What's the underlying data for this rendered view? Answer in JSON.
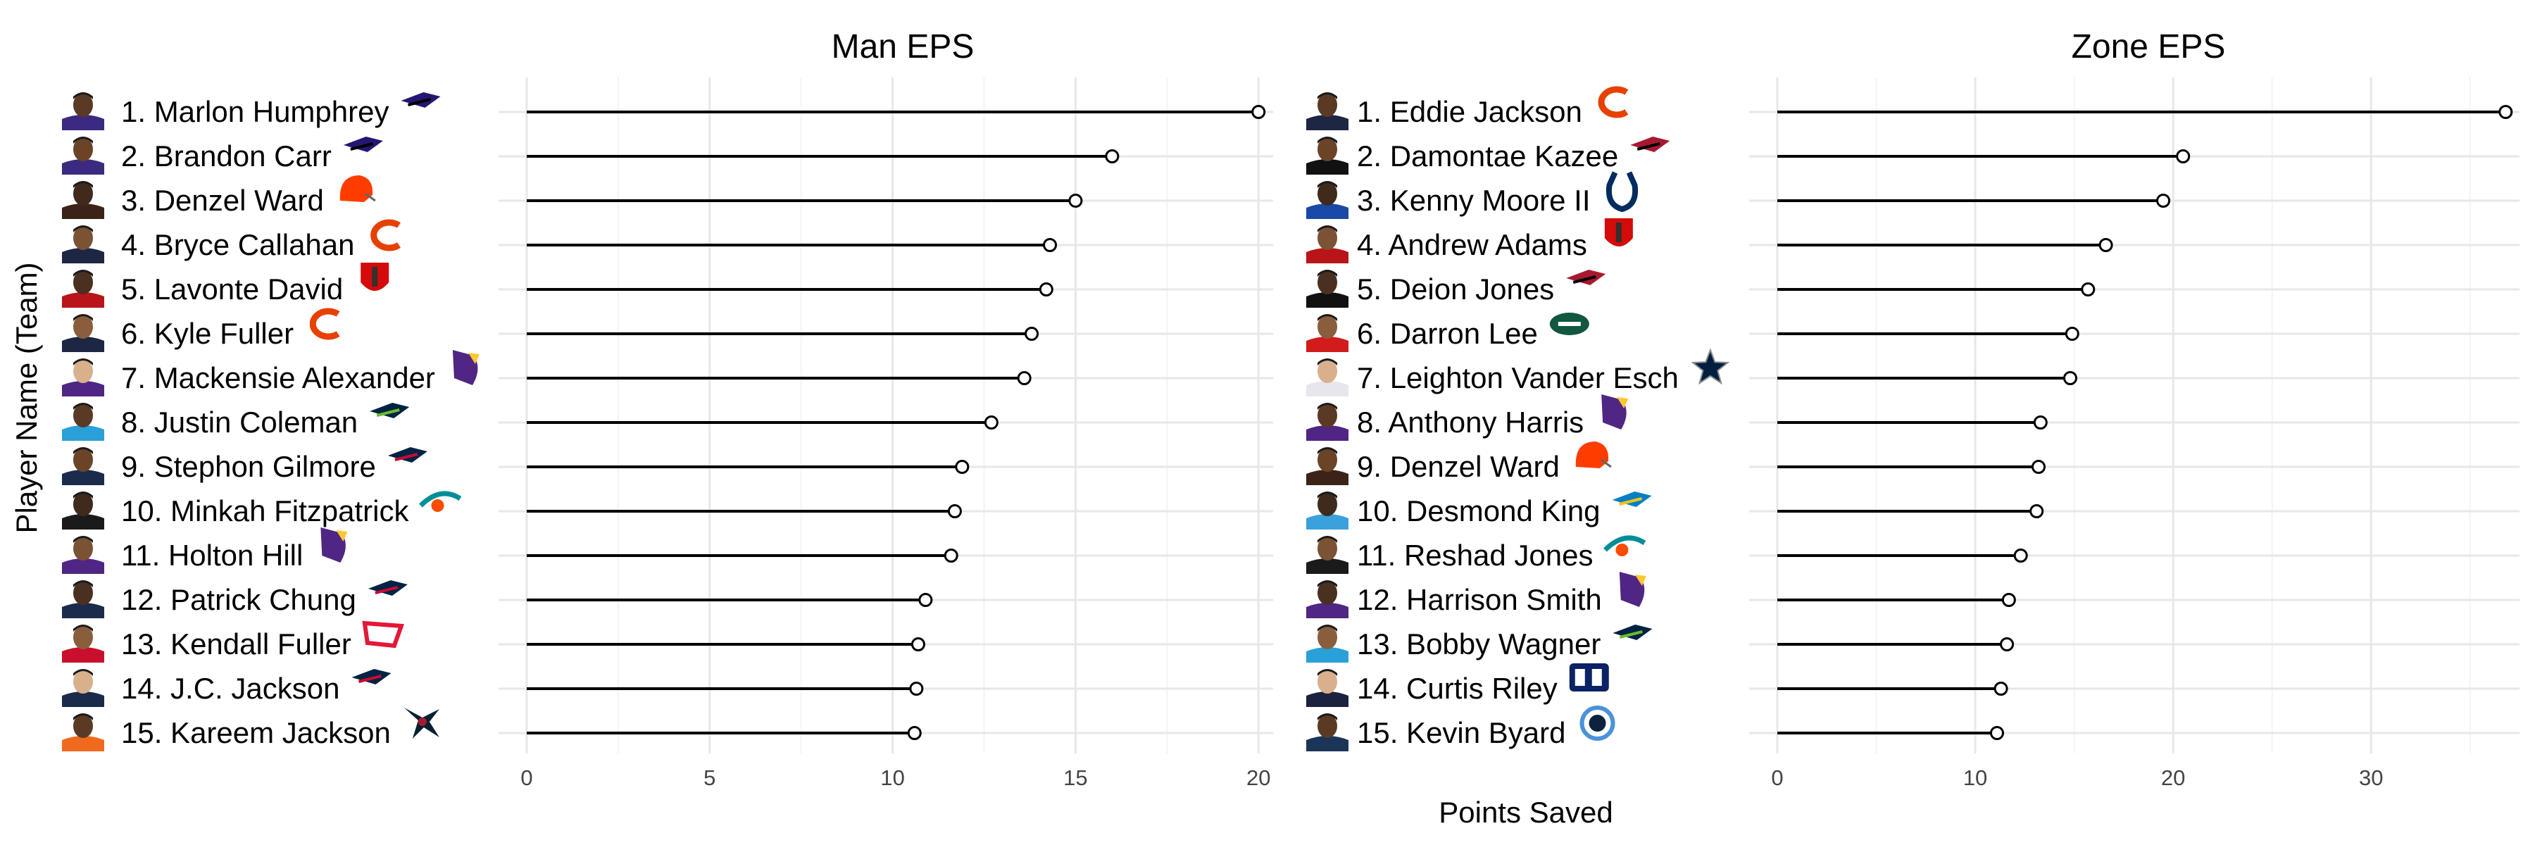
{
  "figure": {
    "ylabel": "Player Name (Team)",
    "xlabel": "Points Saved"
  },
  "chart_data": [
    {
      "type": "lollipop",
      "title": "Man EPS",
      "xlim": [
        0,
        20.4
      ],
      "xticks": [
        0,
        5,
        10,
        15,
        20
      ],
      "grid": true,
      "players": [
        {
          "label": "1. Marlon Humphrey",
          "team": "BAL",
          "value": 20.0
        },
        {
          "label": "2. Brandon Carr",
          "team": "BAL",
          "value": 16.0
        },
        {
          "label": "3. Denzel Ward",
          "team": "CLE",
          "value": 15.0
        },
        {
          "label": "4. Bryce Callahan",
          "team": "CHI",
          "value": 14.3
        },
        {
          "label": "5. Lavonte David",
          "team": "TB",
          "value": 14.2
        },
        {
          "label": "6. Kyle Fuller",
          "team": "CHI",
          "value": 13.8
        },
        {
          "label": "7. Mackensie Alexander",
          "team": "MIN",
          "value": 13.6
        },
        {
          "label": "8. Justin Coleman",
          "team": "SEA",
          "value": 12.7
        },
        {
          "label": "9. Stephon Gilmore",
          "team": "NE",
          "value": 11.9
        },
        {
          "label": "10. Minkah Fitzpatrick",
          "team": "MIA",
          "value": 11.7
        },
        {
          "label": "11. Holton Hill",
          "team": "MIN",
          "value": 11.6
        },
        {
          "label": "12. Patrick Chung",
          "team": "NE",
          "value": 10.9
        },
        {
          "label": "13. Kendall Fuller",
          "team": "KC",
          "value": 10.7
        },
        {
          "label": "14. J.C. Jackson",
          "team": "NE",
          "value": 10.65
        },
        {
          "label": "15. Kareem Jackson",
          "team": "HOU",
          "value": 10.6
        }
      ]
    },
    {
      "type": "lollipop",
      "title": "Zone EPS",
      "xlim": [
        0,
        37.5
      ],
      "xticks": [
        0,
        10,
        20,
        30
      ],
      "grid": true,
      "players": [
        {
          "label": "1. Eddie Jackson",
          "team": "CHI",
          "value": 36.8
        },
        {
          "label": "2. Damontae Kazee",
          "team": "ATL",
          "value": 20.5
        },
        {
          "label": "3. Kenny Moore II",
          "team": "IND",
          "value": 19.5
        },
        {
          "label": "4. Andrew Adams",
          "team": "TB",
          "value": 16.6
        },
        {
          "label": "5. Deion Jones",
          "team": "ATL",
          "value": 15.7
        },
        {
          "label": "6. Darron Lee",
          "team": "NYJ",
          "value": 14.9
        },
        {
          "label": "7. Leighton Vander Esch",
          "team": "DAL",
          "value": 14.8
        },
        {
          "label": "8. Anthony Harris",
          "team": "MIN",
          "value": 13.3
        },
        {
          "label": "9. Denzel Ward",
          "team": "CLE",
          "value": 13.2
        },
        {
          "label": "10. Desmond King",
          "team": "LAC",
          "value": 13.1
        },
        {
          "label": "11. Reshad Jones",
          "team": "MIA",
          "value": 12.3
        },
        {
          "label": "12. Harrison Smith",
          "team": "MIN",
          "value": 11.7
        },
        {
          "label": "13. Bobby Wagner",
          "team": "SEA",
          "value": 11.6
        },
        {
          "label": "14. Curtis Riley",
          "team": "NYG",
          "value": 11.3
        },
        {
          "label": "15. Kevin Byard",
          "team": "TEN",
          "value": 11.1
        }
      ]
    }
  ],
  "team_colors": {
    "BAL": "#241773",
    "CLE": "#FF3C00",
    "CHI": "#E64100",
    "TB": "#D50A0A",
    "MIN": "#4F2683",
    "SEA": "#002244",
    "NE": "#002244",
    "MIA": "#008E97",
    "KC": "#E31837",
    "HOU": "#03202F",
    "ATL": "#A71930",
    "IND": "#002C5F",
    "NYJ": "#125740",
    "DAL": "#041E42",
    "LAC": "#0080C6",
    "NYG": "#0B2265",
    "TEN": "#4B92DB"
  },
  "jersey_colors": {
    "BAL": "#3b2a80",
    "CLE": "#3b2417",
    "CHI": "#1d2743",
    "TB": "#b8141a",
    "MIN": "#4F2683",
    "SEA": "#2aa0d8",
    "NE": "#1b2b4b",
    "MIA": "#1a1a1a",
    "KC": "#c8102e",
    "HOU": "#f06a1e",
    "ATL": "#111111",
    "IND": "#1a4aa8",
    "NYJ": "#d21b1b",
    "DAL": "#e6e6ec",
    "LAC": "#3aa1dc",
    "NYG": "#1b2240",
    "TEN": "#1b3558",
    "DEN": "#f26a21"
  }
}
